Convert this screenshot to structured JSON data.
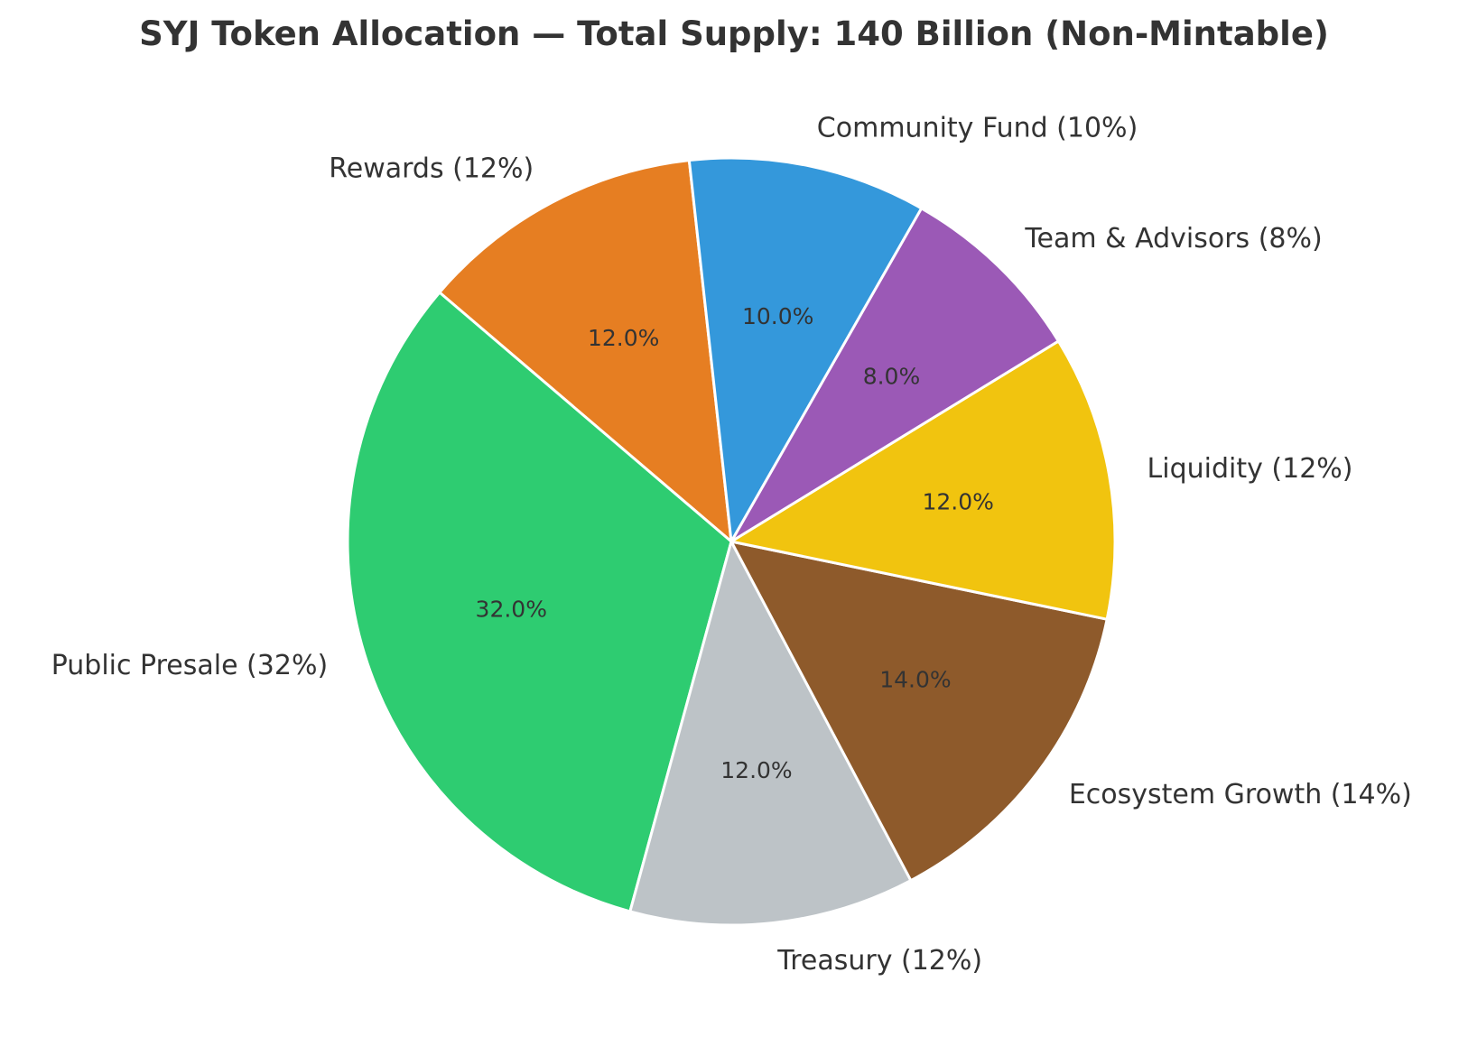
{
  "chart_data": {
    "type": "pie",
    "title": "SYJ Token Allocation — Total Supply: 140 Billion (Non-Mintable)",
    "start_angle_deg": 96.3,
    "direction": "counterclockwise",
    "slices": [
      {
        "label": "Rewards (12%)",
        "value": 12,
        "pct_label": "12.0%",
        "color": "#e67e22"
      },
      {
        "label": "Public Presale (32%)",
        "value": 32,
        "pct_label": "32.0%",
        "color": "#2ecc71"
      },
      {
        "label": "Treasury (12%)",
        "value": 12,
        "pct_label": "12.0%",
        "color": "#bdc3c7"
      },
      {
        "label": "Ecosystem Growth (14%)",
        "value": 14,
        "pct_label": "14.0%",
        "color": "#8e5a2b"
      },
      {
        "label": "Liquidity (12%)",
        "value": 12,
        "pct_label": "12.0%",
        "color": "#f1c40f"
      },
      {
        "label": "Team & Advisors (8%)",
        "value": 8,
        "pct_label": "8.0%",
        "color": "#9b59b6"
      },
      {
        "label": "Community Fund (10%)",
        "value": 10,
        "pct_label": "10.0%",
        "color": "#3498db"
      }
    ]
  }
}
